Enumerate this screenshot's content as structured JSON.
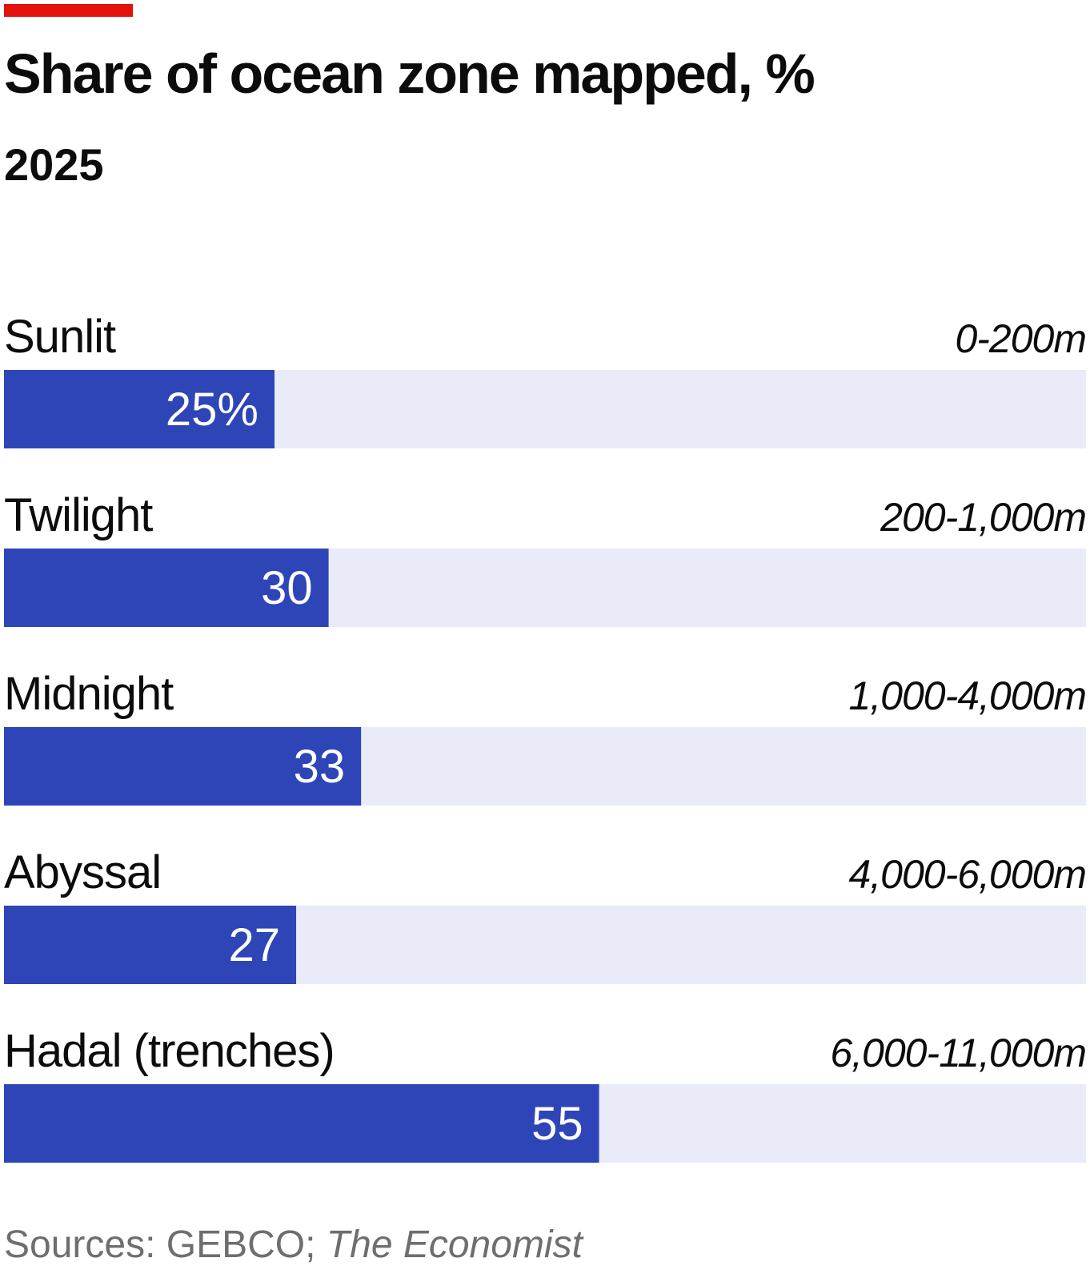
{
  "colors": {
    "accent": "#e3120b",
    "bar": "#2e45b8",
    "track": "#e9ebf8",
    "text": "#0c0c0c",
    "value_text": "#ffffff",
    "source_text": "#6e6e6e"
  },
  "chart_data": {
    "type": "bar",
    "orientation": "horizontal",
    "title": "Share of ocean zone mapped, %",
    "subtitle": "2025",
    "categories": [
      "Sunlit",
      "Twilight",
      "Midnight",
      "Abyssal",
      "Hadal (trenches)"
    ],
    "depth_ranges": [
      "0-200m",
      "200-1,000m",
      "1,000-4,000m",
      "4,000-6,000m",
      "6,000-11,000m"
    ],
    "values": [
      25,
      30,
      33,
      27,
      55
    ],
    "value_labels": [
      "25%",
      "30",
      "33",
      "27",
      "55"
    ],
    "xlim": [
      0,
      100
    ],
    "grid": false,
    "legend": "none"
  },
  "source": {
    "prefix": "Sources: GEBCO; ",
    "publication": "The Economist"
  }
}
